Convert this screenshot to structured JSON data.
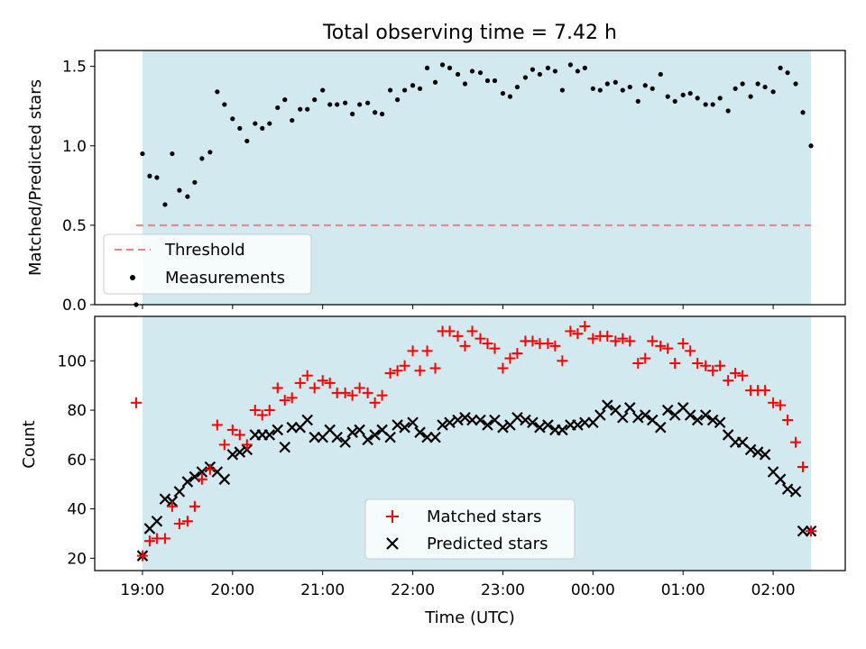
{
  "figure": {
    "title": "Total observing time = 7.42 h",
    "xlabel": "Time (UTC)"
  },
  "colors": {
    "shade": "#d3e9f0",
    "threshold": "#f08080",
    "matched": "#ff0000",
    "predicted": "#000000",
    "measurements": "#000000"
  },
  "chart_data": [
    {
      "type": "scatter",
      "panel": "top",
      "ylabel": "Matched/Predicted stars",
      "xlim": [
        18.47,
        26.8
      ],
      "ylim": [
        0,
        1.6
      ],
      "yticks": [
        0.0,
        0.5,
        1.0,
        1.5
      ],
      "yticklabels": [
        "0.0",
        "0.5",
        "1.0",
        "1.5"
      ],
      "shaded_span": [
        19.0,
        26.42
      ],
      "legend": {
        "location": "lower-left",
        "threshold_label": "Threshold",
        "measurements_label": "Measurements"
      },
      "threshold": {
        "name": "Threshold",
        "y": 0.5,
        "x_range": [
          18.93,
          26.42
        ],
        "style": "dashed"
      },
      "series": [
        {
          "name": "Measurements",
          "marker": "dot",
          "x": [
            18.93,
            19.0,
            19.08,
            19.16,
            19.25,
            19.33,
            19.41,
            19.5,
            19.58,
            19.66,
            19.75,
            19.83,
            19.91,
            20.0,
            20.08,
            20.16,
            20.25,
            20.33,
            20.41,
            20.5,
            20.58,
            20.66,
            20.75,
            20.83,
            20.91,
            21.0,
            21.08,
            21.16,
            21.25,
            21.33,
            21.41,
            21.5,
            21.58,
            21.66,
            21.75,
            21.83,
            21.91,
            22.0,
            22.08,
            22.16,
            22.25,
            22.33,
            22.41,
            22.5,
            22.58,
            22.66,
            22.75,
            22.83,
            22.91,
            23.0,
            23.08,
            23.16,
            23.25,
            23.33,
            23.41,
            23.5,
            23.58,
            23.66,
            23.75,
            23.83,
            23.91,
            24.0,
            24.08,
            24.16,
            24.25,
            24.33,
            24.41,
            24.5,
            24.58,
            24.66,
            24.75,
            24.83,
            24.91,
            25.0,
            25.08,
            25.16,
            25.25,
            25.33,
            25.41,
            25.5,
            25.58,
            25.66,
            25.75,
            25.83,
            25.91,
            26.0,
            26.08,
            26.16,
            26.25,
            26.33,
            26.42
          ],
          "values": [
            0.0,
            0.95,
            0.81,
            0.8,
            0.63,
            0.95,
            0.72,
            0.68,
            0.77,
            0.92,
            0.96,
            1.34,
            1.26,
            1.17,
            1.11,
            1.03,
            1.14,
            1.11,
            1.14,
            1.24,
            1.29,
            1.16,
            1.23,
            1.23,
            1.29,
            1.35,
            1.26,
            1.26,
            1.27,
            1.2,
            1.26,
            1.27,
            1.21,
            1.2,
            1.35,
            1.29,
            1.35,
            1.38,
            1.36,
            1.49,
            1.4,
            1.51,
            1.49,
            1.45,
            1.39,
            1.47,
            1.46,
            1.41,
            1.41,
            1.33,
            1.31,
            1.37,
            1.43,
            1.48,
            1.45,
            1.49,
            1.47,
            1.35,
            1.51,
            1.47,
            1.49,
            1.36,
            1.35,
            1.39,
            1.4,
            1.35,
            1.37,
            1.28,
            1.38,
            1.36,
            1.45,
            1.31,
            1.28,
            1.32,
            1.33,
            1.3,
            1.26,
            1.26,
            1.3,
            1.22,
            1.36,
            1.39,
            1.31,
            1.39,
            1.37,
            1.34,
            1.49,
            1.46,
            1.39,
            1.21,
            1.0
          ]
        }
      ]
    },
    {
      "type": "scatter",
      "panel": "bottom",
      "ylabel": "Count",
      "xlabel": "Time (UTC)",
      "xlim": [
        18.47,
        26.8
      ],
      "ylim": [
        15,
        118
      ],
      "yticks": [
        20,
        40,
        60,
        80,
        100
      ],
      "xticks": [
        19,
        20,
        21,
        22,
        23,
        24,
        25,
        26
      ],
      "xticklabels": [
        "19:00",
        "20:00",
        "21:00",
        "22:00",
        "23:00",
        "00:00",
        "01:00",
        "02:00"
      ],
      "shaded_span": [
        19.0,
        26.42
      ],
      "legend": {
        "location": "lower-center",
        "matched_label": "Matched stars",
        "predicted_label": "Predicted stars"
      },
      "series": [
        {
          "name": "Matched stars",
          "marker": "plus",
          "x": [
            18.93,
            19.0,
            19.08,
            19.16,
            19.25,
            19.33,
            19.41,
            19.5,
            19.58,
            19.66,
            19.75,
            19.83,
            19.91,
            20.0,
            20.08,
            20.16,
            20.25,
            20.33,
            20.41,
            20.5,
            20.58,
            20.66,
            20.75,
            20.83,
            20.91,
            21.0,
            21.08,
            21.16,
            21.25,
            21.33,
            21.41,
            21.5,
            21.58,
            21.66,
            21.75,
            21.83,
            21.91,
            22.0,
            22.08,
            22.16,
            22.25,
            22.33,
            22.41,
            22.5,
            22.58,
            22.66,
            22.75,
            22.83,
            22.91,
            23.0,
            23.08,
            23.16,
            23.25,
            23.33,
            23.41,
            23.5,
            23.58,
            23.66,
            23.75,
            23.83,
            23.91,
            24.0,
            24.08,
            24.16,
            24.25,
            24.33,
            24.41,
            24.5,
            24.58,
            24.66,
            24.75,
            24.83,
            24.91,
            25.0,
            25.08,
            25.16,
            25.25,
            25.33,
            25.41,
            25.5,
            25.58,
            25.66,
            25.75,
            25.83,
            25.91,
            26.0,
            26.08,
            26.16,
            26.25,
            26.33,
            26.42
          ],
          "values": [
            83,
            21,
            27,
            28,
            28,
            41,
            34,
            35,
            41,
            52,
            56,
            74,
            66,
            72,
            70,
            66,
            80,
            78,
            80,
            89,
            84,
            85,
            91,
            94,
            89,
            92,
            91,
            87,
            87,
            86,
            89,
            87,
            83,
            86,
            95,
            96,
            98,
            104,
            96,
            104,
            97,
            112,
            112,
            110,
            106,
            112,
            109,
            107,
            105,
            97,
            101,
            103,
            108,
            108,
            107,
            107,
            106,
            100,
            112,
            111,
            114,
            109,
            110,
            110,
            108,
            109,
            108,
            99,
            101,
            108,
            106,
            105,
            99,
            107,
            104,
            99,
            98,
            96,
            98,
            92,
            95,
            94,
            88,
            88,
            88,
            83,
            82,
            76,
            67,
            57,
            31
          ]
        },
        {
          "name": "Predicted stars",
          "marker": "x",
          "x": [
            19.0,
            19.08,
            19.16,
            19.25,
            19.33,
            19.41,
            19.5,
            19.58,
            19.66,
            19.75,
            19.83,
            19.91,
            20.0,
            20.08,
            20.16,
            20.25,
            20.33,
            20.41,
            20.5,
            20.58,
            20.66,
            20.75,
            20.83,
            20.91,
            21.0,
            21.08,
            21.16,
            21.25,
            21.33,
            21.41,
            21.5,
            21.58,
            21.66,
            21.75,
            21.83,
            21.91,
            22.0,
            22.08,
            22.16,
            22.25,
            22.33,
            22.41,
            22.5,
            22.58,
            22.66,
            22.75,
            22.83,
            22.91,
            23.0,
            23.08,
            23.16,
            23.25,
            23.33,
            23.41,
            23.5,
            23.58,
            23.66,
            23.75,
            23.83,
            23.91,
            24.0,
            24.08,
            24.16,
            24.25,
            24.33,
            24.41,
            24.5,
            24.58,
            24.66,
            24.75,
            24.83,
            24.91,
            25.0,
            25.08,
            25.16,
            25.25,
            25.33,
            25.41,
            25.5,
            25.58,
            25.66,
            25.75,
            25.83,
            25.91,
            26.0,
            26.08,
            26.16,
            26.25,
            26.33,
            26.42
          ],
          "values": [
            21,
            32,
            35,
            44,
            43,
            47,
            51,
            53,
            55,
            57,
            55,
            52,
            62,
            63,
            64,
            70,
            70,
            70,
            72,
            65,
            73,
            73,
            76,
            69,
            69,
            72,
            69,
            67,
            71,
            72,
            68,
            70,
            72,
            69,
            74,
            73,
            75,
            71,
            69,
            69,
            74,
            75,
            76,
            77,
            76,
            76,
            74,
            76,
            73,
            74,
            77,
            76,
            75,
            73,
            74,
            72,
            72,
            74,
            74,
            75,
            75,
            78,
            82,
            80,
            77,
            81,
            77,
            78,
            76,
            73,
            80,
            78,
            81,
            78,
            76,
            78,
            76,
            75,
            70,
            67,
            67,
            64,
            63,
            62,
            55,
            52,
            48,
            47,
            31,
            31
          ]
        }
      ]
    }
  ]
}
